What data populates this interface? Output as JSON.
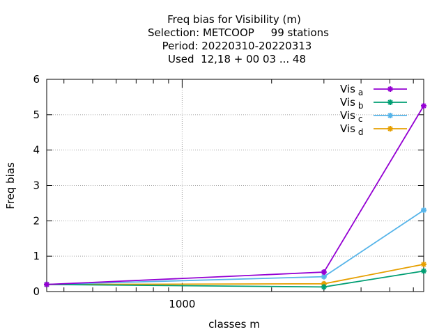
{
  "chart_data": {
    "type": "line",
    "title_lines": [
      "Freq bias  for Visibility (m)",
      "Selection: METCOOP     99 stations",
      "Period: 20220310-20220313",
      "Used  12,18 + 00 03 ... 48"
    ],
    "xlabel": "classes m",
    "ylabel": "Freq bias",
    "x_scale": "log",
    "xlim": [
      350,
      6500
    ],
    "ylim": [
      0,
      6
    ],
    "x_tick_labels": [
      {
        "value": 1000,
        "label": "1000"
      }
    ],
    "y_ticks": [
      0,
      1,
      2,
      3,
      4,
      5,
      6
    ],
    "grid": true,
    "legend_position": "top-right",
    "x": [
      350,
      3000,
      6500
    ],
    "series": [
      {
        "name": "Vis",
        "sub": "a",
        "color": "#9400d3",
        "marker": "cross",
        "values": [
          0.2,
          0.55,
          5.25
        ]
      },
      {
        "name": "Vis",
        "sub": "b",
        "color": "#009e73",
        "marker": "cross",
        "values": [
          0.2,
          0.13,
          0.58
        ]
      },
      {
        "name": "Vis",
        "sub": "c",
        "color": "#56b4e9",
        "marker": "cross",
        "values": [
          0.2,
          0.42,
          2.3
        ]
      },
      {
        "name": "Vis",
        "sub": "d",
        "color": "#e69f00",
        "marker": "cross",
        "values": [
          0.2,
          0.22,
          0.77
        ]
      }
    ]
  }
}
